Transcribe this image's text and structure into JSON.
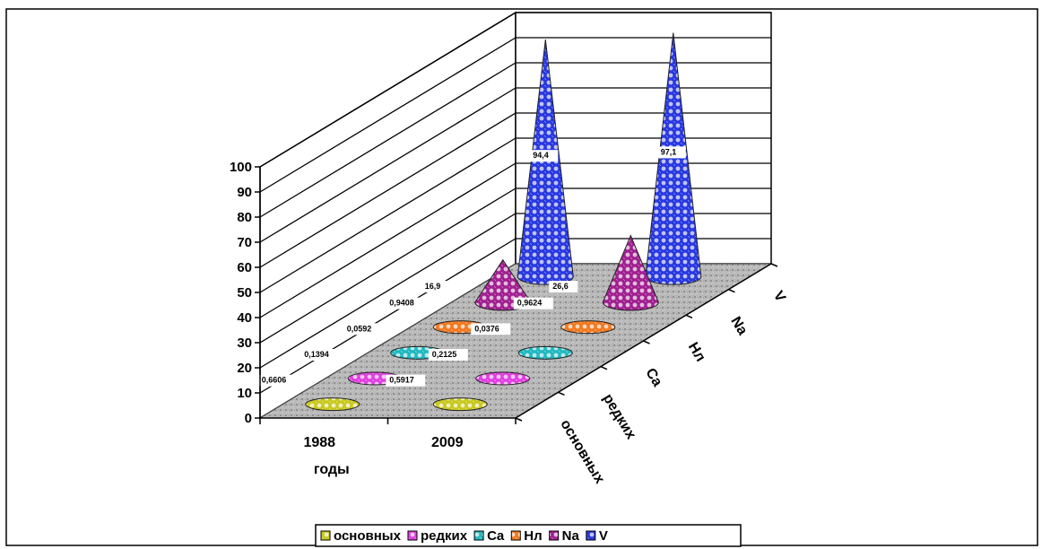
{
  "chart_data": {
    "type": "3d-cone-column",
    "xlabel": "годы",
    "categories": [
      "1988",
      "2009"
    ],
    "depth_categories": [
      "основных",
      "редких",
      "Ca",
      "Нл",
      "Na",
      "V"
    ],
    "yticks": [
      "0",
      "10",
      "20",
      "30",
      "40",
      "50",
      "60",
      "70",
      "80",
      "90",
      "100"
    ],
    "ylim": [
      0,
      100
    ],
    "series": [
      {
        "name": "основных",
        "values": [
          0.6606,
          0.5917
        ],
        "labels": [
          "0,6606",
          "0,5917"
        ],
        "color": "#c8c820"
      },
      {
        "name": "редких",
        "values": [
          0.1394,
          0.2125
        ],
        "labels": [
          "0,1394",
          "0,2125"
        ],
        "color": "#e040e0"
      },
      {
        "name": "Ca",
        "values": [
          0.0592,
          0.0376
        ],
        "labels": [
          "0,0592",
          "0,0376"
        ],
        "color": "#20b8c0"
      },
      {
        "name": "Нл",
        "values": [
          0.9408,
          0.9624
        ],
        "labels": [
          "0,9408",
          "0,9624"
        ],
        "color": "#f07820"
      },
      {
        "name": "Na",
        "values": [
          16.9,
          26.6
        ],
        "labels": [
          "16,9",
          "26,6"
        ],
        "color": "#a02090"
      },
      {
        "name": "V",
        "values": [
          94.4,
          97.1
        ],
        "labels": [
          "94,4",
          "97,1"
        ],
        "color": "#2838e0"
      }
    ],
    "legend_position": "bottom",
    "grid": true
  }
}
